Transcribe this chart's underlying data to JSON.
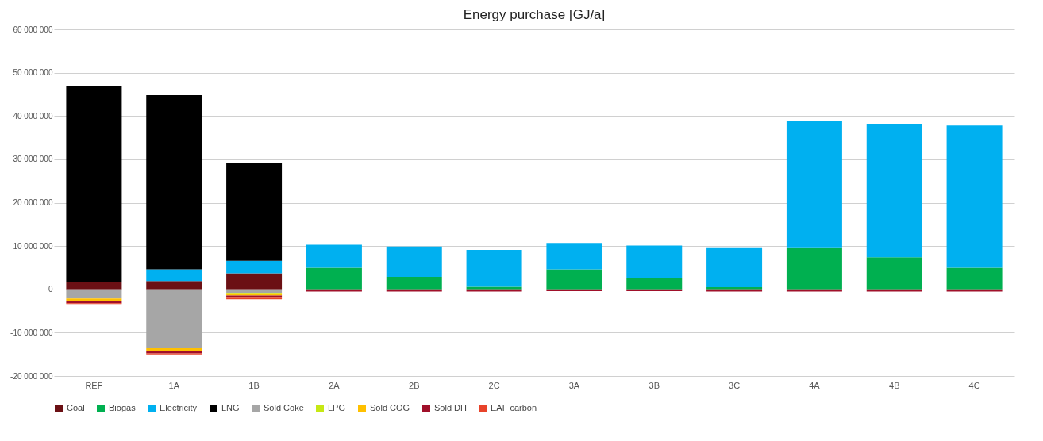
{
  "chart_data": {
    "type": "bar",
    "title": "Energy purchase [GJ/a]",
    "stacked": true,
    "legend": "bottom",
    "grid": "y",
    "categories": [
      "REF",
      "1A",
      "1B",
      "2A",
      "2B",
      "2C",
      "3A",
      "3B",
      "3C",
      "4A",
      "4B",
      "4C"
    ],
    "ylim": [
      -20000000,
      60000000
    ],
    "yticks": [
      {
        "value": -20000000,
        "label": "-20 000 000"
      },
      {
        "value": -10000000,
        "label": "-10 000 000"
      },
      {
        "value": 0,
        "label": "0"
      },
      {
        "value": 10000000,
        "label": "10 000 000"
      },
      {
        "value": 20000000,
        "label": "20 000 000"
      },
      {
        "value": 30000000,
        "label": "30 000 000"
      },
      {
        "value": 40000000,
        "label": "40 000 000"
      },
      {
        "value": 50000000,
        "label": "50 000 000"
      },
      {
        "value": 60000000,
        "label": "60 000 000"
      }
    ],
    "series": [
      {
        "name": "Coal",
        "color": "#6b1014",
        "values": [
          1700000,
          1900000,
          3700000,
          0,
          0,
          0,
          0,
          0,
          0,
          0,
          0,
          0
        ]
      },
      {
        "name": "Biogas",
        "color": "#00b050",
        "values": [
          0,
          0,
          0,
          5000000,
          2900000,
          600000,
          4600000,
          2700000,
          500000,
          9500000,
          7400000,
          5000000
        ]
      },
      {
        "name": "Electricity",
        "color": "#00b0f0",
        "values": [
          0,
          2700000,
          2900000,
          5300000,
          7000000,
          8500000,
          6100000,
          7400000,
          9000000,
          29300000,
          30800000,
          32800000
        ]
      },
      {
        "name": "LNG",
        "color": "#000000",
        "values": [
          45200000,
          40200000,
          22500000,
          0,
          0,
          0,
          0,
          0,
          0,
          0,
          0,
          0
        ]
      },
      {
        "name": "Sold Coke",
        "color": "#a6a6a6",
        "values": [
          -2100000,
          -13600000,
          -800000,
          0,
          0,
          0,
          0,
          0,
          0,
          0,
          0,
          0
        ]
      },
      {
        "name": "LPG",
        "color": "#c6e814",
        "values": [
          0,
          0,
          -300000,
          0,
          0,
          0,
          0,
          0,
          0,
          0,
          0,
          0
        ]
      },
      {
        "name": "Sold COG",
        "color": "#ffc000",
        "values": [
          -600000,
          -600000,
          -300000,
          0,
          0,
          0,
          0,
          0,
          0,
          0,
          0,
          0
        ]
      },
      {
        "name": "Sold DH",
        "color": "#a0102a",
        "values": [
          -500000,
          -600000,
          -500000,
          -500000,
          -500000,
          -500000,
          -400000,
          -400000,
          -500000,
          -500000,
          -500000,
          -500000
        ]
      },
      {
        "name": "EAF carbon",
        "color": "#e8432a",
        "values": [
          -200000,
          -200000,
          -400000,
          0,
          0,
          0,
          0,
          0,
          0,
          0,
          0,
          0
        ]
      }
    ]
  }
}
